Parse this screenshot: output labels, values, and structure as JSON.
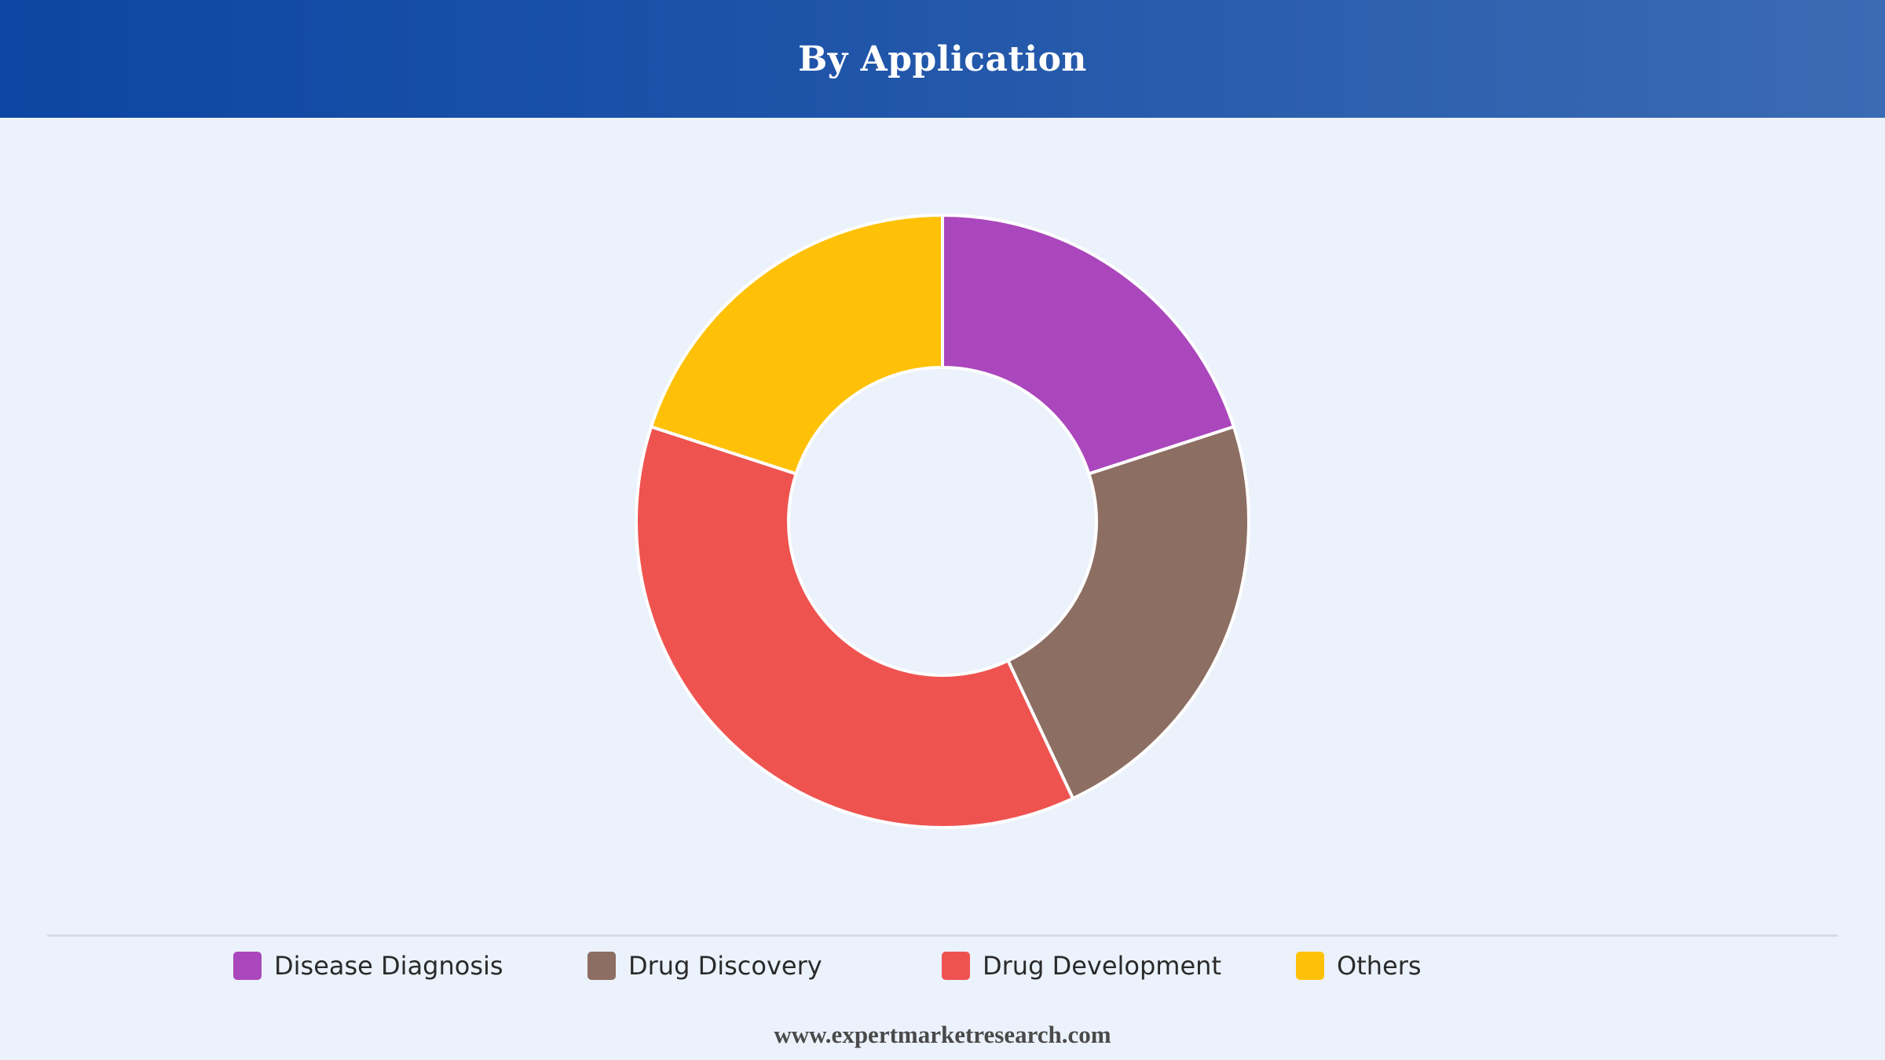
{
  "header": {
    "title": "By Application"
  },
  "chart_data": {
    "type": "pie",
    "donut": true,
    "categories": [
      "Disease Diagnosis",
      "Drug Discovery",
      "Drug Development",
      "Others"
    ],
    "values": [
      20,
      23,
      37,
      20
    ],
    "colors": [
      "#ab47bc",
      "#8d6e63",
      "#ef5350",
      "#ffc107"
    ],
    "legend_position": "bottom",
    "start": "top",
    "direction": "clockwise"
  },
  "legend": {
    "items": [
      {
        "label": "Disease Diagnosis",
        "color": "#ab47bc"
      },
      {
        "label": "Drug Discovery",
        "color": "#8d6e63"
      },
      {
        "label": "Drug Development",
        "color": "#ef5350"
      },
      {
        "label": "Others",
        "color": "#ffc107"
      }
    ]
  },
  "footer": {
    "source": "www.expertmarketresearch.com"
  }
}
